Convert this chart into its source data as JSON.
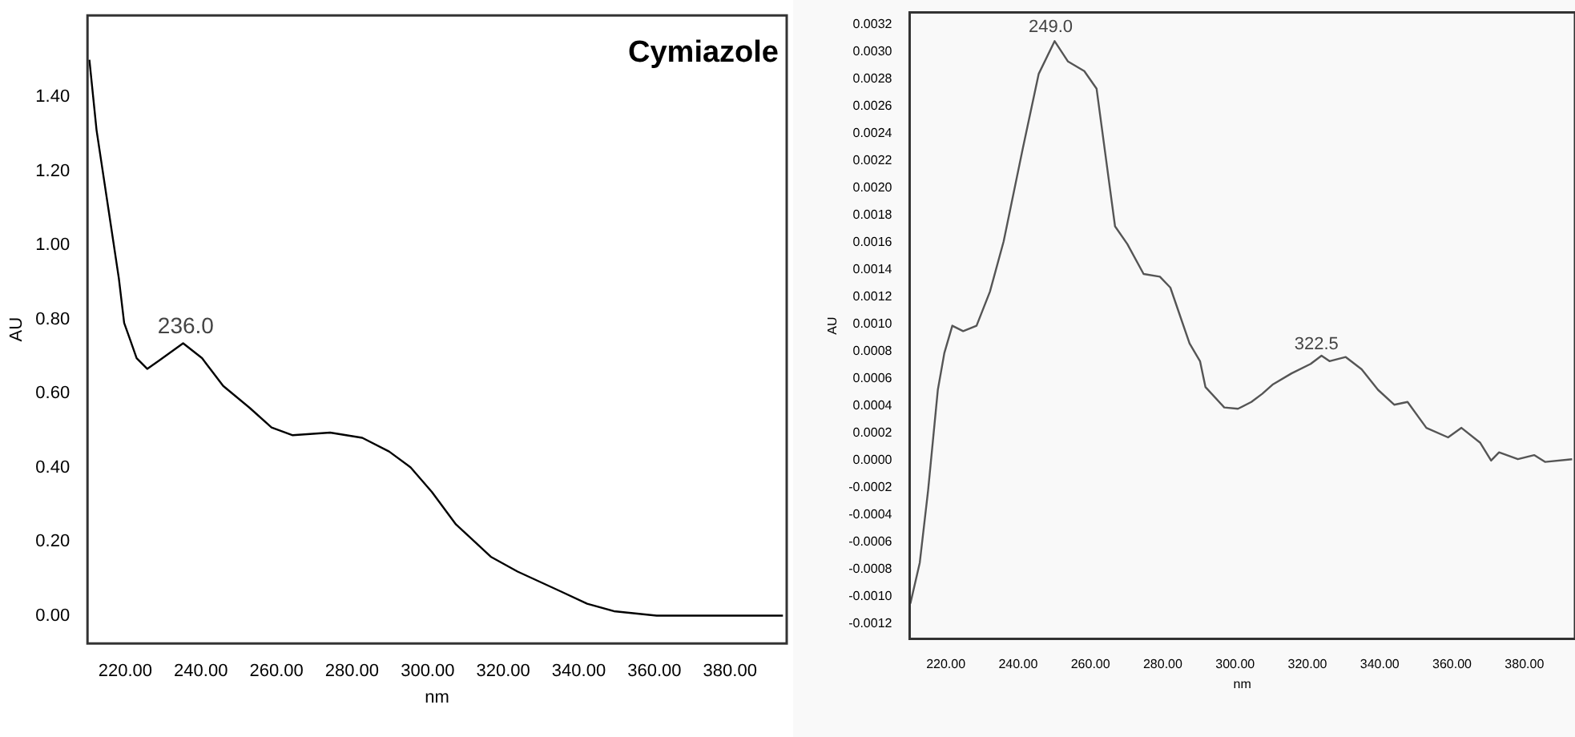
{
  "chart_data": [
    {
      "type": "line",
      "title": "Cymiazole",
      "xlabel": "nm",
      "ylabel": "AU",
      "x": [
        210.5,
        212.4,
        215.5,
        218.3,
        219.7,
        221.1,
        223,
        225.8,
        228.9,
        235.3,
        240.3,
        245.9,
        253,
        258.7,
        264.3,
        274.2,
        282.7,
        289.8,
        295.5,
        301.1,
        307.5,
        311,
        316.7,
        323.8,
        335.1,
        342.2,
        349.3,
        360.6,
        394
      ],
      "series": [
        {
          "color": "#000000",
          "values": [
            1.5,
            1.31,
            1.1,
            0.91,
            0.79,
            0.75,
            0.695,
            0.666,
            0.688,
            0.735,
            0.695,
            0.62,
            0.56,
            0.508,
            0.487,
            0.494,
            0.48,
            0.443,
            0.4,
            0.334,
            0.246,
            0.213,
            0.159,
            0.119,
            0.066,
            0.032,
            0.012,
            0,
            0
          ]
        }
      ],
      "xlim": [
        210,
        395
      ],
      "xticks": [
        {
          "value": 220,
          "label": "220.00"
        },
        {
          "value": 240,
          "label": "240.00"
        },
        {
          "value": 260,
          "label": "260.00"
        },
        {
          "value": 280,
          "label": "280.00"
        },
        {
          "value": 300,
          "label": "300.00"
        },
        {
          "value": 320,
          "label": "320.00"
        },
        {
          "value": 340,
          "label": "340.00"
        },
        {
          "value": 360,
          "label": "360.00"
        },
        {
          "value": 380,
          "label": "380.00"
        }
      ],
      "ylim": [
        -0.075,
        1.62
      ],
      "yticks": [
        {
          "value": 0,
          "label": "0.00"
        },
        {
          "value": 0.2,
          "label": "0.20"
        },
        {
          "value": 0.4,
          "label": "0.40"
        },
        {
          "value": 0.6,
          "label": "0.60"
        },
        {
          "value": 0.8,
          "label": "0.80"
        },
        {
          "value": 1,
          "label": "1.00"
        },
        {
          "value": 1.2,
          "label": "1.20"
        },
        {
          "value": 1.4,
          "label": "1.40"
        }
      ],
      "annotations": [
        {
          "text": "236.0",
          "x": 236,
          "y": 0.735
        }
      ]
    },
    {
      "type": "line",
      "xlabel": "nm",
      "ylabel": "AU",
      "x": [
        210.2,
        212.8,
        215.1,
        217.8,
        219.6,
        221.8,
        224.8,
        228.5,
        232.2,
        236,
        241.2,
        245.7,
        250.1,
        253.8,
        258.3,
        261.7,
        266.8,
        270.2,
        274.7,
        279.2,
        282.1,
        287.4,
        290.3,
        291.8,
        297,
        300.8,
        304.5,
        307.5,
        310.5,
        315.6,
        320.9,
        323.9,
        326.1,
        330.6,
        335,
        339.5,
        344,
        347.7,
        352.9,
        358.9,
        362.6,
        367.8,
        370.8,
        373,
        378.2,
        382.7,
        385.7,
        393.2
      ],
      "series": [
        {
          "color": "#555555",
          "values": [
            -0.00105,
            -0.00075,
            -0.00022,
            0.00052,
            0.00079,
            0.00099,
            0.00095,
            0.00099,
            0.00124,
            0.00161,
            0.00228,
            0.00284,
            0.00308,
            0.00293,
            0.00286,
            0.00273,
            0.00172,
            0.00159,
            0.00137,
            0.00135,
            0.00127,
            0.00086,
            0.00073,
            0.00054,
            0.00039,
            0.00038,
            0.00043,
            0.00049,
            0.00056,
            0.00064,
            0.00071,
            0.00077,
            0.00073,
            0.00076,
            0.00067,
            0.00052,
            0.00041,
            0.00043,
            0.00024,
            0.00017,
            0.00024,
            0.00013,
            0,
            6e-05,
            1e-05,
            4e-05,
            -1e-05,
            1e-05
          ]
        }
      ],
      "xlim": [
        210,
        394
      ],
      "xticks": [
        {
          "value": 220,
          "label": "220.00"
        },
        {
          "value": 240,
          "label": "240.00"
        },
        {
          "value": 260,
          "label": "260.00"
        },
        {
          "value": 280,
          "label": "280.00"
        },
        {
          "value": 300,
          "label": "300.00"
        },
        {
          "value": 320,
          "label": "320.00"
        },
        {
          "value": 340,
          "label": "340.00"
        },
        {
          "value": 360,
          "label": "360.00"
        },
        {
          "value": 380,
          "label": "380.00"
        }
      ],
      "ylim": [
        -0.00131,
        0.00329
      ],
      "yticks": [
        {
          "value": -0.0012,
          "label": "-0.0012"
        },
        {
          "value": -0.001,
          "label": "-0.0010"
        },
        {
          "value": -0.0008,
          "label": "-0.0008"
        },
        {
          "value": -0.0006,
          "label": "-0.0006"
        },
        {
          "value": -0.0004,
          "label": "-0.0004"
        },
        {
          "value": -0.0002,
          "label": "-0.0002"
        },
        {
          "value": 0,
          "label": "0.0000"
        },
        {
          "value": 0.0002,
          "label": "0.0002"
        },
        {
          "value": 0.0004,
          "label": "0.0004"
        },
        {
          "value": 0.0006,
          "label": "0.0006"
        },
        {
          "value": 0.0008,
          "label": "0.0008"
        },
        {
          "value": 0.001,
          "label": "0.0010"
        },
        {
          "value": 0.0012,
          "label": "0.0012"
        },
        {
          "value": 0.0014,
          "label": "0.0014"
        },
        {
          "value": 0.0016,
          "label": "0.0016"
        },
        {
          "value": 0.0018,
          "label": "0.0018"
        },
        {
          "value": 0.002,
          "label": "0.0020"
        },
        {
          "value": 0.0022,
          "label": "0.0022"
        },
        {
          "value": 0.0024,
          "label": "0.0024"
        },
        {
          "value": 0.0026,
          "label": "0.0026"
        },
        {
          "value": 0.0028,
          "label": "0.0028"
        },
        {
          "value": 0.003,
          "label": "0.0030"
        },
        {
          "value": 0.0032,
          "label": "0.0032"
        }
      ],
      "annotations": [
        {
          "text": "249.0",
          "x": 249,
          "y": 0.00308
        },
        {
          "text": "322.5",
          "x": 322.5,
          "y": 0.00075
        }
      ]
    }
  ]
}
